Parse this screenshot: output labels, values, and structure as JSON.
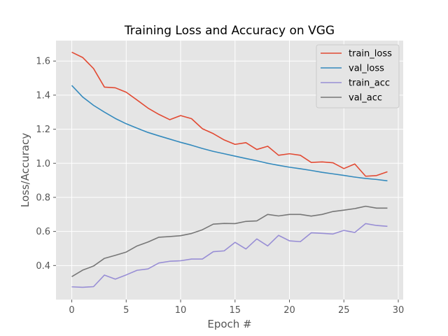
{
  "chart_data": {
    "type": "line",
    "title": "Training Loss and Accuracy on VGG",
    "xlabel": "Epoch #",
    "ylabel": "Loss/Accuracy",
    "xlim": [
      -1.45,
      30.45
    ],
    "ylim": [
      0.2,
      1.72
    ],
    "xticks": [
      0,
      5,
      10,
      15,
      20,
      25,
      30
    ],
    "yticks": [
      0.4,
      0.6,
      0.8,
      1.0,
      1.2,
      1.4,
      1.6
    ],
    "xtick_labels": [
      "0",
      "5",
      "10",
      "15",
      "20",
      "25",
      "30"
    ],
    "ytick_labels": [
      "0.4",
      "0.6",
      "0.8",
      "1.0",
      "1.2",
      "1.4",
      "1.6"
    ],
    "grid": true,
    "legend_position": "top-right",
    "x": [
      0,
      1,
      2,
      3,
      4,
      5,
      6,
      7,
      8,
      9,
      10,
      11,
      12,
      13,
      14,
      15,
      16,
      17,
      18,
      19,
      20,
      21,
      22,
      23,
      24,
      25,
      26,
      27,
      28,
      29
    ],
    "series": [
      {
        "name": "train_loss",
        "color": "#e24a33",
        "values": [
          1.652,
          1.621,
          1.556,
          1.447,
          1.443,
          1.417,
          1.371,
          1.324,
          1.287,
          1.256,
          1.28,
          1.262,
          1.203,
          1.174,
          1.137,
          1.111,
          1.121,
          1.081,
          1.1,
          1.047,
          1.056,
          1.047,
          1.005,
          1.008,
          1.003,
          0.969,
          0.996,
          0.924,
          0.928,
          0.95
        ]
      },
      {
        "name": "val_loss",
        "color": "#348abd",
        "values": [
          1.457,
          1.389,
          1.34,
          1.3,
          1.263,
          1.232,
          1.206,
          1.181,
          1.161,
          1.142,
          1.123,
          1.106,
          1.087,
          1.07,
          1.056,
          1.042,
          1.028,
          1.015,
          1.0,
          0.988,
          0.977,
          0.968,
          0.958,
          0.947,
          0.938,
          0.929,
          0.919,
          0.911,
          0.905,
          0.897
        ]
      },
      {
        "name": "train_acc",
        "color": "#988ed5",
        "values": [
          0.275,
          0.272,
          0.276,
          0.344,
          0.32,
          0.345,
          0.372,
          0.38,
          0.415,
          0.425,
          0.428,
          0.438,
          0.438,
          0.481,
          0.486,
          0.536,
          0.497,
          0.556,
          0.515,
          0.577,
          0.545,
          0.54,
          0.592,
          0.589,
          0.585,
          0.606,
          0.594,
          0.646,
          0.635,
          0.63
        ]
      },
      {
        "name": "val_acc",
        "color": "#777777",
        "values": [
          0.335,
          0.373,
          0.397,
          0.442,
          0.46,
          0.479,
          0.515,
          0.538,
          0.566,
          0.57,
          0.575,
          0.588,
          0.61,
          0.643,
          0.647,
          0.646,
          0.659,
          0.662,
          0.7,
          0.691,
          0.7,
          0.7,
          0.69,
          0.7,
          0.717,
          0.725,
          0.734,
          0.748,
          0.737,
          0.737
        ]
      }
    ]
  }
}
